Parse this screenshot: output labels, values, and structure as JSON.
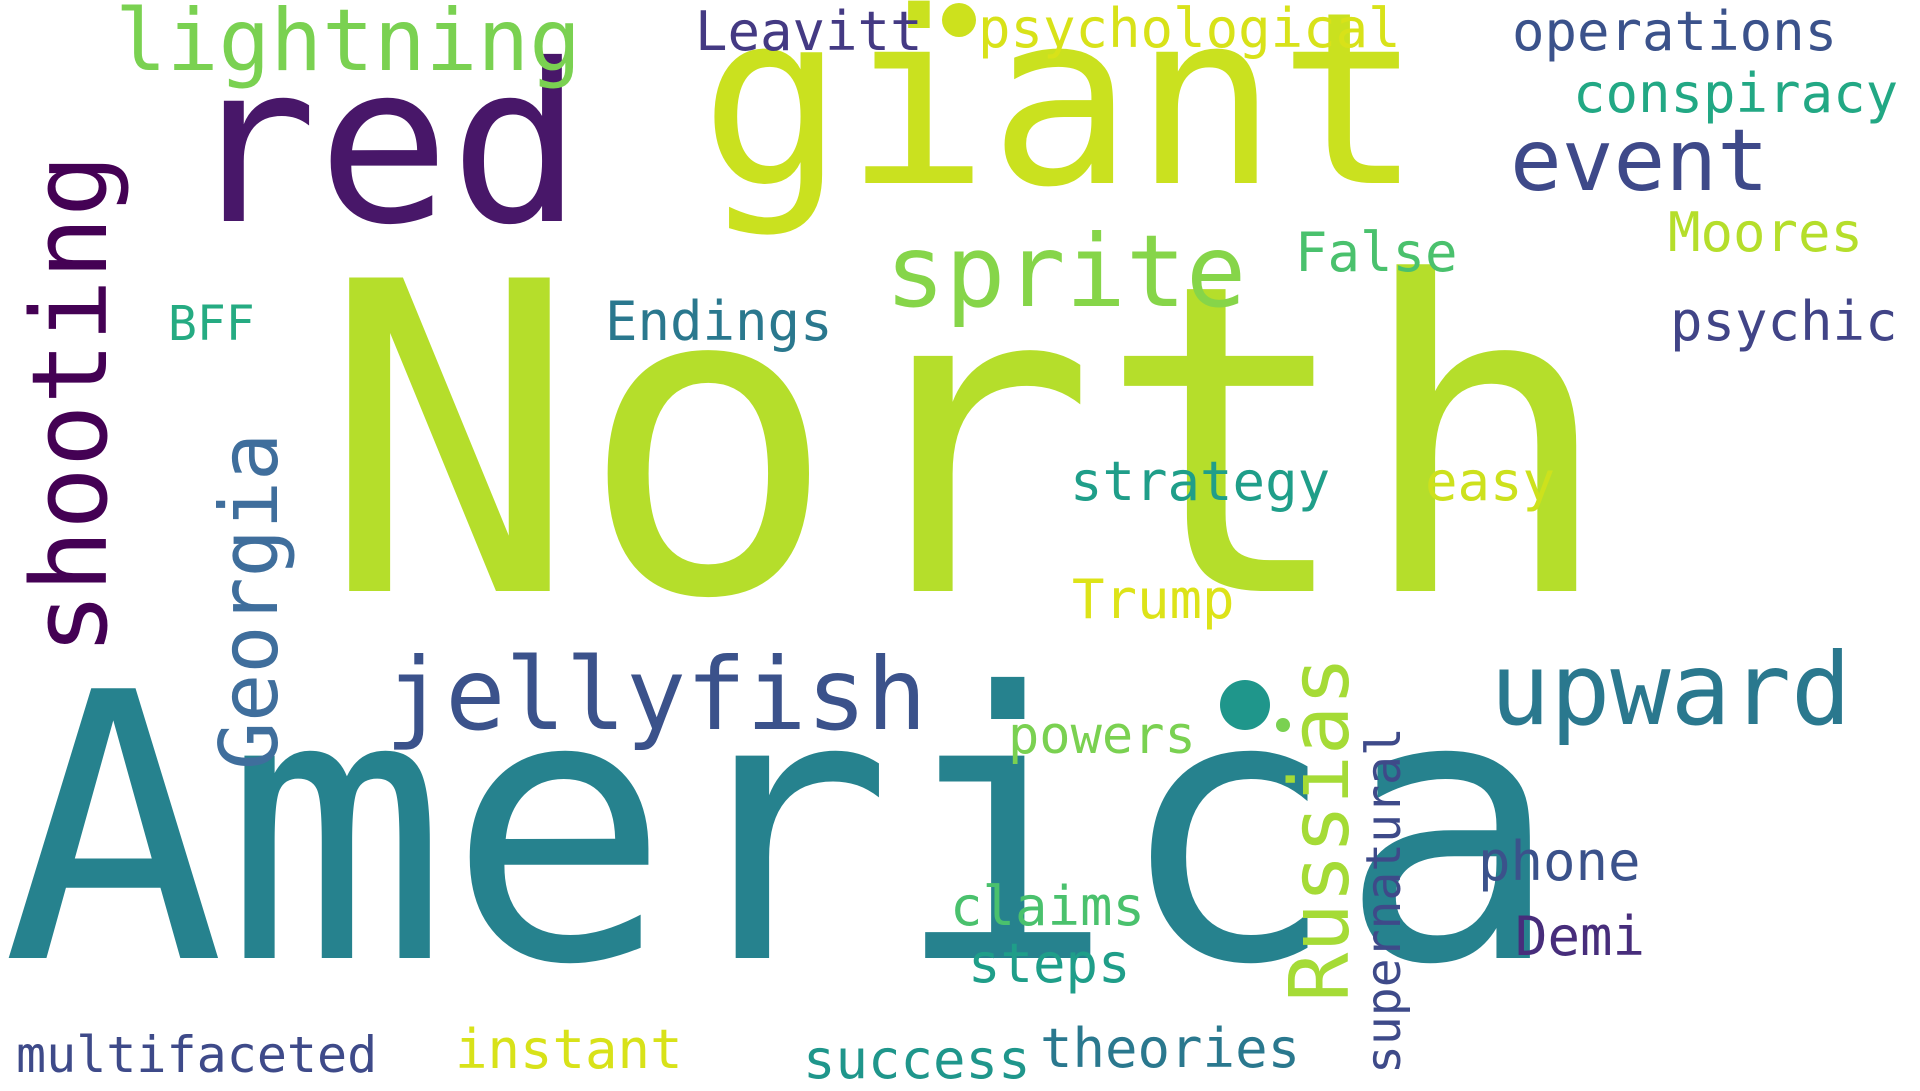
{
  "words": [
    {
      "id": "north",
      "text": "North",
      "color": "#b5de2b",
      "rotated": false
    },
    {
      "id": "america",
      "text": "America",
      "color": "#26828e",
      "rotated": false
    },
    {
      "id": "giant",
      "text": "giant",
      "color": "#cae11f",
      "rotated": false
    },
    {
      "id": "red",
      "text": "red",
      "color": "#481769",
      "rotated": false
    },
    {
      "id": "shooting",
      "text": "shooting",
      "color": "#440154",
      "rotated": true
    },
    {
      "id": "lightning",
      "text": "lightning",
      "color": "#7ad151",
      "rotated": false
    },
    {
      "id": "sprite",
      "text": "sprite",
      "color": "#86d549",
      "rotated": false
    },
    {
      "id": "event",
      "text": "event",
      "color": "#3e4989",
      "rotated": false
    },
    {
      "id": "jellyfish",
      "text": "jellyfish",
      "color": "#3b528b",
      "rotated": false
    },
    {
      "id": "georgia",
      "text": "Georgia",
      "color": "#3f6e9c",
      "rotated": true
    },
    {
      "id": "upward",
      "text": "upward",
      "color": "#2a788e",
      "rotated": false
    },
    {
      "id": "russias",
      "text": "Russias",
      "color": "#a5db36",
      "rotated": true
    },
    {
      "id": "supernatural",
      "text": "supernatural",
      "color": "#3e4a89",
      "rotated": true
    },
    {
      "id": "leavitt",
      "text": "Leavitt",
      "color": "#443a83",
      "rotated": false
    },
    {
      "id": "psychological",
      "text": "psychological",
      "color": "#d8e219",
      "rotated": false
    },
    {
      "id": "operations",
      "text": "operations",
      "color": "#3b528b",
      "rotated": false
    },
    {
      "id": "conspiracy",
      "text": "conspiracy",
      "color": "#22a884",
      "rotated": false
    },
    {
      "id": "moores",
      "text": "Moores",
      "color": "#b5de2b",
      "rotated": false
    },
    {
      "id": "false",
      "text": "False",
      "color": "#4ac16d",
      "rotated": false
    },
    {
      "id": "psychic",
      "text": "psychic",
      "color": "#414487",
      "rotated": false
    },
    {
      "id": "endings",
      "text": "Endings",
      "color": "#2a788e",
      "rotated": false
    },
    {
      "id": "bff",
      "text": "BFF",
      "color": "#25ab82",
      "rotated": false
    },
    {
      "id": "strategy",
      "text": "strategy",
      "color": "#1f9e89",
      "rotated": false
    },
    {
      "id": "easy",
      "text": "easy",
      "color": "#cde11d",
      "rotated": false
    },
    {
      "id": "trump",
      "text": "Trump",
      "color": "#dde318",
      "rotated": false
    },
    {
      "id": "powers",
      "text": "powers",
      "color": "#7ad151",
      "rotated": false
    },
    {
      "id": "phone",
      "text": "phone",
      "color": "#3b528b",
      "rotated": false
    },
    {
      "id": "demi",
      "text": "Demi",
      "color": "#472d7b",
      "rotated": false
    },
    {
      "id": "claims",
      "text": "claims",
      "color": "#4ac16d",
      "rotated": false
    },
    {
      "id": "steps",
      "text": "steps",
      "color": "#1f9e89",
      "rotated": false
    },
    {
      "id": "multifaceted",
      "text": "multifaceted",
      "color": "#3e4a89",
      "rotated": false
    },
    {
      "id": "instant",
      "text": "instant",
      "color": "#d8e219",
      "rotated": false
    },
    {
      "id": "success",
      "text": "success",
      "color": "#1f968b",
      "rotated": false
    },
    {
      "id": "theories",
      "text": "theories",
      "color": "#2a788e",
      "rotated": false
    }
  ],
  "dots": [
    {
      "id": "dot-1",
      "color": "#cde11d"
    },
    {
      "id": "dot-2",
      "color": "#1f968b"
    },
    {
      "id": "dot-3",
      "color": "#7ad151"
    }
  ]
}
